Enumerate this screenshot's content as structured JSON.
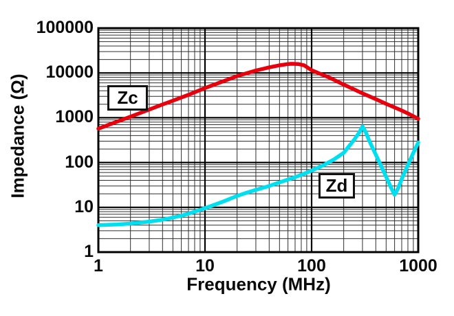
{
  "chart_data": {
    "type": "line",
    "title": "",
    "xlabel": "Frequency (MHz)",
    "ylabel": "Impedance (Ω)",
    "xscale": "log",
    "yscale": "log",
    "xlim": [
      1,
      1000
    ],
    "ylim": [
      1,
      100000
    ],
    "grid": "log major and minor gridlines, both axes",
    "legend_position": "inline boxed labels on curves",
    "x_axis": {
      "ticks": [
        "1",
        "10",
        "100",
        "1000"
      ]
    },
    "y_axis": {
      "ticks": [
        "1",
        "10",
        "100",
        "1000",
        "10000",
        "100000"
      ]
    },
    "series": [
      {
        "name": "Zc",
        "color": "#e8000d",
        "description": "common-mode impedance, broad peak ~16000 ohm near 65 MHz",
        "points": [
          [
            1,
            570
          ],
          [
            1.5,
            820
          ],
          [
            2,
            1060
          ],
          [
            3,
            1530
          ],
          [
            4,
            1980
          ],
          [
            5,
            2400
          ],
          [
            7,
            3250
          ],
          [
            10,
            4600
          ],
          [
            15,
            6600
          ],
          [
            20,
            8500
          ],
          [
            25,
            10000
          ],
          [
            30,
            11300
          ],
          [
            40,
            13300
          ],
          [
            50,
            14800
          ],
          [
            60,
            15800
          ],
          [
            65,
            16000
          ],
          [
            75,
            15800
          ],
          [
            85,
            14800
          ],
          [
            100,
            11500
          ],
          [
            120,
            9600
          ],
          [
            150,
            7700
          ],
          [
            200,
            5500
          ],
          [
            250,
            4300
          ],
          [
            300,
            3500
          ],
          [
            400,
            2600
          ],
          [
            500,
            2050
          ],
          [
            600,
            1700
          ],
          [
            700,
            1450
          ],
          [
            800,
            1250
          ],
          [
            900,
            1080
          ],
          [
            1000,
            950
          ]
        ]
      },
      {
        "name": "Zd",
        "color": "#00dff0",
        "description": "differential-mode impedance, resonance peak ~640 ohm at 300 MHz, notch ~19 ohm at 600 MHz",
        "points": [
          [
            1,
            4
          ],
          [
            1.5,
            4.15
          ],
          [
            2,
            4.35
          ],
          [
            3,
            4.8
          ],
          [
            4,
            5.3
          ],
          [
            5,
            5.9
          ],
          [
            6,
            6.5
          ],
          [
            8,
            8
          ],
          [
            10,
            9.6
          ],
          [
            12,
            11.2
          ],
          [
            15,
            13.6
          ],
          [
            20,
            18
          ],
          [
            25,
            21.5
          ],
          [
            30,
            24.5
          ],
          [
            40,
            30
          ],
          [
            50,
            36
          ],
          [
            70,
            47
          ],
          [
            100,
            66
          ],
          [
            130,
            88
          ],
          [
            160,
            115
          ],
          [
            200,
            165
          ],
          [
            250,
            320
          ],
          [
            280,
            470
          ],
          [
            300,
            640
          ],
          [
            320,
            490
          ],
          [
            350,
            295
          ],
          [
            400,
            150
          ],
          [
            450,
            83
          ],
          [
            500,
            48
          ],
          [
            550,
            29
          ],
          [
            600,
            19
          ],
          [
            650,
            27
          ],
          [
            700,
            43
          ],
          [
            800,
            88
          ],
          [
            900,
            165
          ],
          [
            1000,
            280
          ]
        ]
      }
    ]
  },
  "annotations": {
    "zc_label": "Zc",
    "zd_label": "Zd"
  }
}
